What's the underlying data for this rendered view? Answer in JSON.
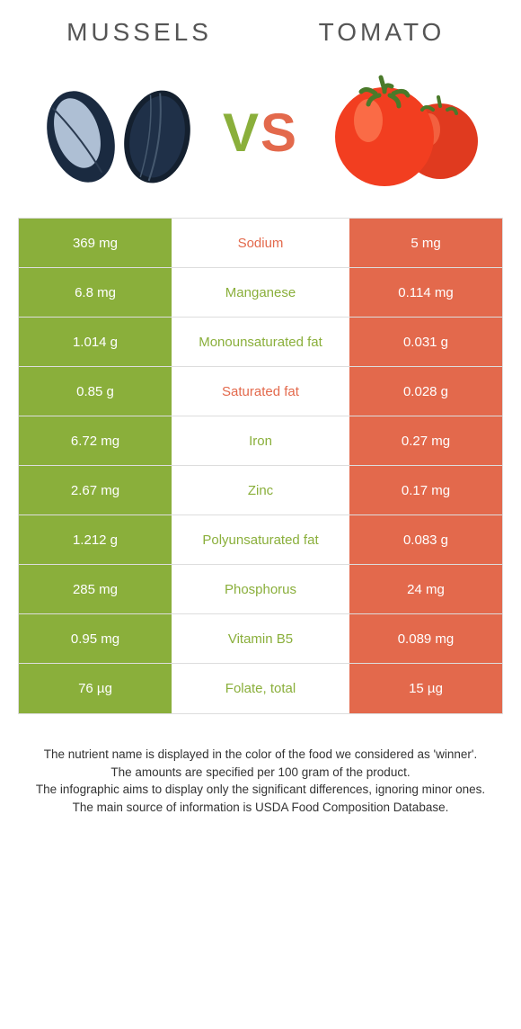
{
  "left_food": {
    "name": "Mussels",
    "color": "#8aaf3b"
  },
  "right_food": {
    "name": "Tomato",
    "color": "#e3694c"
  },
  "vs": {
    "v_color": "#8aaf3b",
    "s_color": "#e3694c"
  },
  "divider_color": "#dddddd",
  "background_color": "#ffffff",
  "title_color": "#555555",
  "title_fontsize": 28,
  "nutrients": [
    {
      "name": "Sodium",
      "left": "369 mg",
      "right": "5 mg",
      "winner": "right"
    },
    {
      "name": "Manganese",
      "left": "6.8 mg",
      "right": "0.114 mg",
      "winner": "left"
    },
    {
      "name": "Monounsaturated fat",
      "left": "1.014 g",
      "right": "0.031 g",
      "winner": "left"
    },
    {
      "name": "Saturated fat",
      "left": "0.85 g",
      "right": "0.028 g",
      "winner": "right"
    },
    {
      "name": "Iron",
      "left": "6.72 mg",
      "right": "0.27 mg",
      "winner": "left"
    },
    {
      "name": "Zinc",
      "left": "2.67 mg",
      "right": "0.17 mg",
      "winner": "left"
    },
    {
      "name": "Polyunsaturated fat",
      "left": "1.212 g",
      "right": "0.083 g",
      "winner": "left"
    },
    {
      "name": "Phosphorus",
      "left": "285 mg",
      "right": "24 mg",
      "winner": "left"
    },
    {
      "name": "Vitamin B5",
      "left": "0.95 mg",
      "right": "0.089 mg",
      "winner": "left"
    },
    {
      "name": "Folate, total",
      "left": "76 µg",
      "right": "15 µg",
      "winner": "left"
    }
  ],
  "footnote_lines": [
    "The nutrient name is displayed in the color of the food we considered as 'winner'.",
    "The amounts are specified per 100 gram of the product.",
    "The infographic aims to display only the significant differences, ignoring minor ones.",
    "The main source of information is USDA Food Composition Database."
  ]
}
